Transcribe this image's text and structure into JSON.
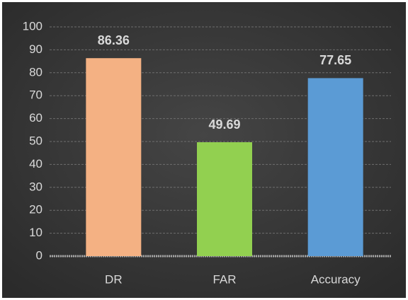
{
  "chart_data": {
    "type": "bar",
    "categories": [
      "DR",
      "FAR",
      "Accuracy"
    ],
    "values": [
      86.36,
      49.69,
      77.65
    ],
    "colors": [
      "#f4b183",
      "#92d050",
      "#5b9bd5"
    ],
    "ylim": [
      0,
      100
    ],
    "yticks": [
      0,
      10,
      20,
      30,
      40,
      50,
      60,
      70,
      80,
      90,
      100
    ],
    "grid": true
  }
}
